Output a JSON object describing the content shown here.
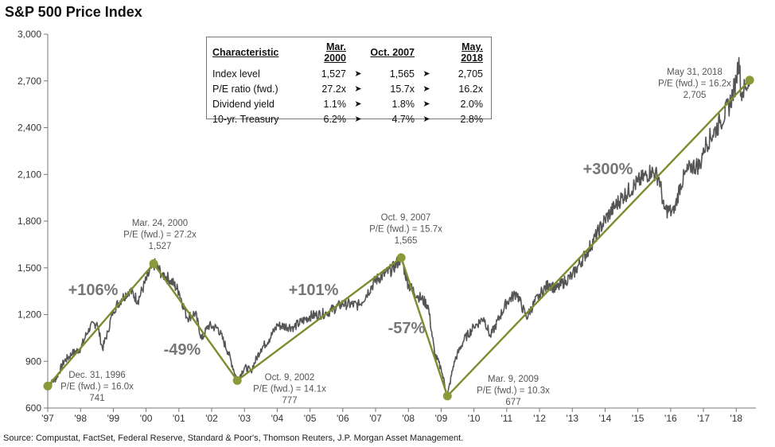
{
  "title": "S&P 500 Price Index",
  "source": "Source: Compustat, FactSet, Federal Reserve, Standard & Poor's, Thomson Reuters, J.P. Morgan Asset Management.",
  "colors": {
    "price_line": "#555555",
    "trend_line": "#7f8b2e",
    "marker": "#8b9a38",
    "axis": "#777777",
    "annotation_text": "#555555",
    "change_text": "#777777"
  },
  "table": {
    "headers": [
      "Characteristic",
      "Mar. 2000",
      "Oct. 2007",
      "May. 2018"
    ],
    "arrow_icon": "right-arrow-icon",
    "rows": [
      {
        "name": "Index level",
        "values": [
          "1,527",
          "1,565",
          "2,705"
        ]
      },
      {
        "name": "P/E ratio (fwd.)",
        "values": [
          "27.2x",
          "15.7x",
          "16.2x"
        ]
      },
      {
        "name": "Dividend yield",
        "values": [
          "1.1%",
          "1.8%",
          "2.0%"
        ]
      },
      {
        "name": "10-yr. Treasury",
        "values": [
          "6.2%",
          "4.7%",
          "2.8%"
        ]
      }
    ]
  },
  "chart_data": {
    "type": "line",
    "title": "S&P 500 Price Index",
    "xlabel": "",
    "ylabel": "",
    "ylim": [
      600,
      3000
    ],
    "xlim": [
      1997.0,
      2018.6
    ],
    "grid": false,
    "y_ticks": [
      600,
      900,
      1200,
      1500,
      1800,
      2100,
      2400,
      2700,
      3000
    ],
    "y_tick_labels": [
      "600",
      "900",
      "1,200",
      "1,500",
      "1,800",
      "2,100",
      "2,400",
      "2,700",
      "3,000"
    ],
    "x_ticks": [
      1997,
      1998,
      1999,
      2000,
      2001,
      2002,
      2003,
      2004,
      2005,
      2006,
      2007,
      2008,
      2009,
      2010,
      2011,
      2012,
      2013,
      2014,
      2015,
      2016,
      2017,
      2018
    ],
    "x_tick_labels": [
      "'97",
      "'98",
      "'99",
      "'00",
      "'01",
      "'02",
      "'03",
      "'04",
      "'05",
      "'06",
      "'07",
      "'08",
      "'09",
      "'10",
      "'11",
      "'12",
      "'13",
      "'14",
      "'15",
      "'16",
      "'17",
      "'18"
    ],
    "series": [
      {
        "role": "price",
        "x": [
          1997.0,
          1997.25,
          1997.5,
          1997.75,
          1998.0,
          1998.25,
          1998.5,
          1998.67,
          1998.83,
          1999.0,
          1999.25,
          1999.5,
          1999.75,
          2000.0,
          2000.23,
          2000.5,
          2000.75,
          2001.0,
          2001.25,
          2001.5,
          2001.7,
          2001.9,
          2002.2,
          2002.5,
          2002.78,
          2003.0,
          2003.2,
          2003.5,
          2003.75,
          2004.0,
          2004.5,
          2005.0,
          2005.5,
          2006.0,
          2006.5,
          2007.0,
          2007.5,
          2007.78,
          2008.0,
          2008.3,
          2008.6,
          2008.8,
          2009.0,
          2009.19,
          2009.4,
          2009.7,
          2010.0,
          2010.3,
          2010.5,
          2010.8,
          2011.0,
          2011.3,
          2011.6,
          2011.75,
          2012.0,
          2012.3,
          2012.5,
          2012.8,
          2013.0,
          2013.5,
          2014.0,
          2014.5,
          2015.0,
          2015.4,
          2015.65,
          2015.8,
          2016.1,
          2016.3,
          2016.6,
          2016.9,
          2017.0,
          2017.5,
          2017.8,
          2018.0,
          2018.08,
          2018.15,
          2018.3,
          2018.41
        ],
        "values": [
          741,
          790,
          900,
          950,
          980,
          1110,
          1150,
          980,
          1090,
          1230,
          1300,
          1360,
          1290,
          1420,
          1527,
          1460,
          1420,
          1350,
          1180,
          1210,
          1040,
          1130,
          1110,
          960,
          777,
          860,
          840,
          980,
          1040,
          1130,
          1120,
          1190,
          1210,
          1270,
          1260,
          1420,
          1490,
          1565,
          1390,
          1320,
          1260,
          950,
          850,
          677,
          900,
          1040,
          1120,
          1180,
          1060,
          1190,
          1280,
          1340,
          1180,
          1240,
          1330,
          1400,
          1360,
          1420,
          1450,
          1620,
          1810,
          1950,
          2050,
          2120,
          2080,
          1880,
          1850,
          2040,
          2150,
          2160,
          2270,
          2430,
          2550,
          2700,
          2850,
          2620,
          2660,
          2705
        ]
      },
      {
        "role": "trend",
        "x": [
          1997.0,
          2000.23,
          2002.78,
          2007.78,
          2009.19,
          2018.41
        ],
        "values": [
          741,
          1527,
          777,
          1565,
          677,
          2705
        ]
      }
    ],
    "markers": [
      {
        "x": 1997.0,
        "value": 741,
        "label": [
          "Dec. 31, 1996",
          "P/E (fwd.) = 16.0x",
          "741"
        ]
      },
      {
        "x": 2000.23,
        "value": 1527,
        "label": [
          "Mar. 24, 2000",
          "P/E (fwd.) = 27.2x",
          "1,527"
        ]
      },
      {
        "x": 2002.78,
        "value": 777,
        "label": [
          "Oct. 9, 2002",
          "P/E (fwd.) = 14.1x",
          "777"
        ]
      },
      {
        "x": 2007.78,
        "value": 1565,
        "label": [
          "Oct. 9, 2007",
          "P/E (fwd.) = 15.7x",
          "1,565"
        ]
      },
      {
        "x": 2009.19,
        "value": 677,
        "label": [
          "Mar. 9, 2009",
          "P/E (fwd.) = 10.3x",
          "677"
        ]
      },
      {
        "x": 2018.41,
        "value": 2705,
        "label": [
          "May 31, 2018",
          "P/E (fwd.) = 16.2x",
          "2,705"
        ]
      }
    ],
    "changes": [
      {
        "text": "+106%"
      },
      {
        "text": "-49%"
      },
      {
        "text": "+101%"
      },
      {
        "text": "-57%"
      },
      {
        "text": "+300%"
      }
    ]
  }
}
